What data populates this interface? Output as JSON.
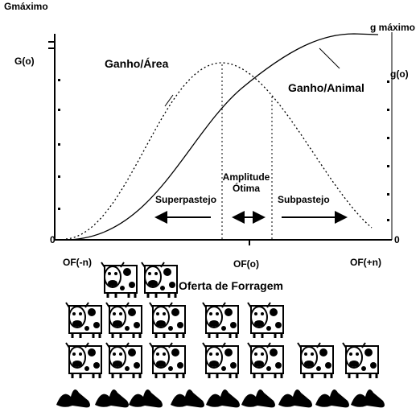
{
  "axes": {
    "left_top": "Gmáximo",
    "left_mid": "G(o)",
    "right_top": "g máximo",
    "right_mid": "g(o)",
    "left_zero": "0",
    "right_zero": "0"
  },
  "curves": {
    "area": "Ganho/Área",
    "animal": "Ganho/Animal"
  },
  "zones": {
    "optimal": [
      "Amplitude",
      "Ótima"
    ],
    "over": "Superpastejo",
    "under": "Subpastejo"
  },
  "x_axis": {
    "low": "OF(-n)",
    "mid": "OF(o)",
    "high": "OF(+n)",
    "title": "Oferta de Forragem"
  }
}
